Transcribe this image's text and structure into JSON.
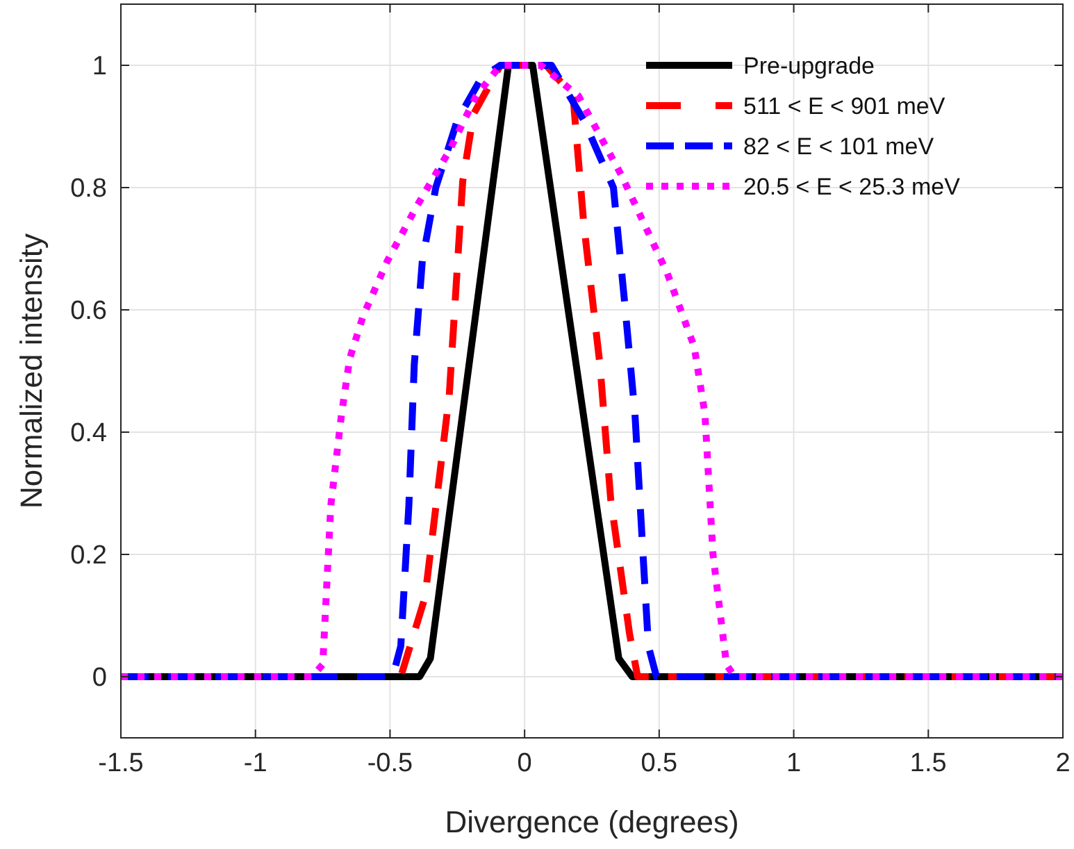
{
  "chart_data": {
    "type": "line",
    "xlabel": "Divergence (degrees)",
    "ylabel": "Normalized intensity",
    "xlim": [
      -1.5,
      2
    ],
    "xticks": [
      -1.5,
      -1,
      -0.5,
      0,
      0.5,
      1,
      1.5,
      2
    ],
    "ylim": [
      -0.1,
      1.1
    ],
    "yticks": [
      0,
      0.2,
      0.4,
      0.6,
      0.8,
      1
    ],
    "grid": true,
    "legend": "top right",
    "series": [
      {
        "name": "Pre-upgrade",
        "color": "#000000",
        "line_style": "solid",
        "x": [
          -1.5,
          -0.39,
          -0.35,
          -0.06,
          0.03,
          0.35,
          0.4,
          2
        ],
        "values": [
          0,
          0,
          0.03,
          1,
          1,
          0.03,
          0,
          0
        ]
      },
      {
        "name": "511 < E < 901 meV",
        "color": "#ff0000",
        "line_style": "dashed",
        "x": [
          -1.5,
          -0.46,
          -0.37,
          -0.28,
          -0.23,
          -0.19,
          -0.09,
          0.08,
          0.18,
          0.22,
          0.28,
          0.32,
          0.39,
          0.42,
          2
        ],
        "values": [
          0,
          0,
          0.13,
          0.46,
          0.81,
          0.92,
          1,
          1,
          0.95,
          0.74,
          0.51,
          0.29,
          0.07,
          0,
          0
        ]
      },
      {
        "name": "82 < E < 101 meV",
        "color": "#0000ff",
        "line_style": "dashed",
        "x": [
          -1.5,
          -0.49,
          -0.46,
          -0.43,
          -0.41,
          -0.38,
          -0.33,
          -0.25,
          -0.16,
          -0.09,
          0.1,
          0.22,
          0.33,
          0.37,
          0.41,
          0.44,
          0.46,
          0.49,
          2
        ],
        "values": [
          0,
          0,
          0.05,
          0.28,
          0.51,
          0.68,
          0.8,
          0.91,
          0.98,
          1,
          1,
          0.91,
          0.8,
          0.62,
          0.43,
          0.2,
          0.05,
          0,
          0
        ]
      },
      {
        "name": "20.5 < E < 25.3 meV",
        "color": "#ff00ff",
        "line_style": "dotted",
        "x": [
          -1.5,
          -0.79,
          -0.75,
          -0.72,
          -0.68,
          -0.65,
          -0.6,
          -0.51,
          -0.4,
          -0.28,
          -0.18,
          -0.09,
          0.06,
          0.2,
          0.36,
          0.53,
          0.63,
          0.67,
          0.7,
          0.75,
          0.78,
          2
        ],
        "values": [
          0,
          0,
          0.02,
          0.28,
          0.43,
          0.52,
          0.59,
          0.68,
          0.77,
          0.86,
          0.95,
          1,
          1,
          0.95,
          0.82,
          0.66,
          0.54,
          0.43,
          0.2,
          0.02,
          0,
          0
        ]
      }
    ]
  }
}
